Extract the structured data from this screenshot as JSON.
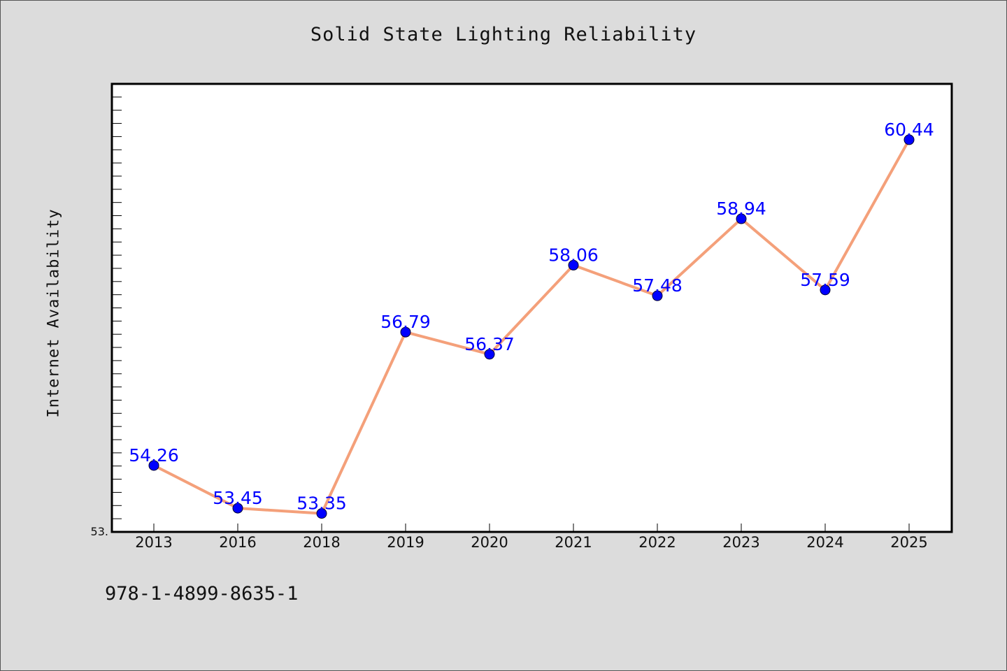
{
  "chart_data": {
    "type": "line",
    "title": "Solid State Lighting Reliability",
    "ylabel": "Internet Availability",
    "xlabel": "",
    "categories": [
      "2013",
      "2016",
      "2018",
      "2019",
      "2020",
      "2021",
      "2022",
      "2023",
      "2024",
      "2025"
    ],
    "values": [
      54.26,
      53.45,
      53.35,
      56.79,
      56.37,
      58.06,
      57.48,
      58.94,
      57.59,
      60.44
    ],
    "data_labels": [
      "54.26",
      "53.45",
      "53.35",
      "56.79",
      "56.37",
      "58.06",
      "57.48",
      "58.94",
      "57.59",
      "60.44"
    ],
    "ytick_label": "53.",
    "ylim": [
      53.0,
      61.5
    ],
    "line_color": "#f4a07a",
    "marker_color": "#0000ff",
    "label_color": "#0000ff",
    "plot_background": "#ffffff",
    "page_background": "#dcdcdc",
    "grid": false,
    "legend": "none"
  },
  "footer_text": "978-1-4899-8635-1"
}
